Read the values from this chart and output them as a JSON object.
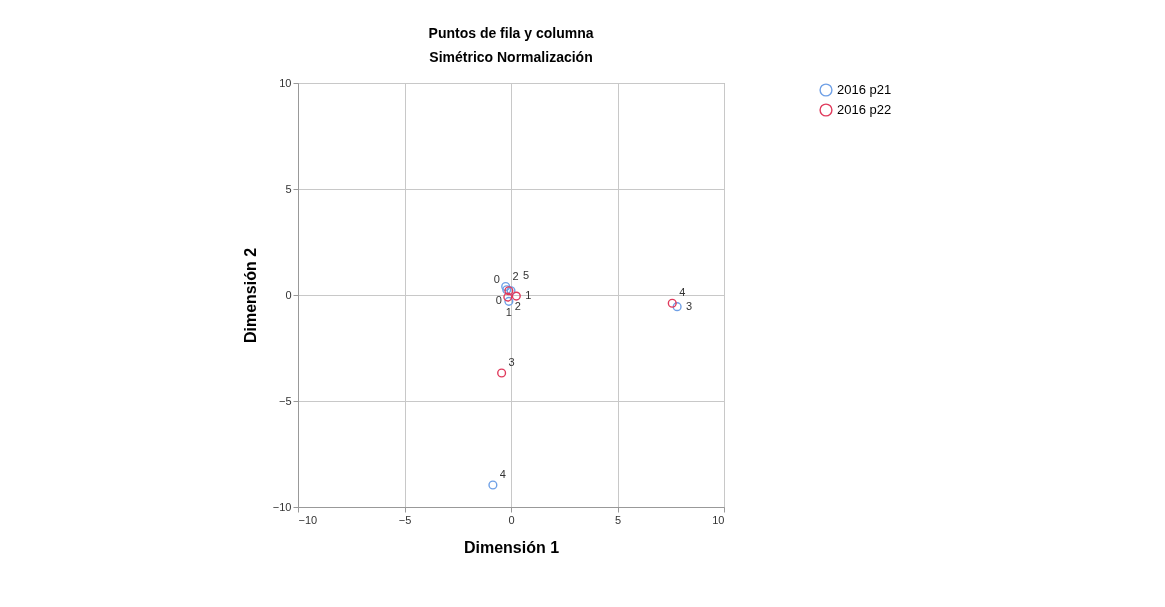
{
  "chart_data": {
    "type": "scatter",
    "title": "Puntos de fila y columna",
    "subtitle": "Simétrico Normalización",
    "xlabel": "Dimensión 1",
    "ylabel": "Dimensión 2",
    "xlim": [
      -10,
      10
    ],
    "ylim": [
      -10,
      10
    ],
    "xticks": [
      -10,
      -5,
      0,
      5,
      10
    ],
    "yticks": [
      -10,
      -5,
      0,
      5,
      10
    ],
    "grid": true,
    "legend": "top right",
    "marker": "circle",
    "series": [
      {
        "name": "2016 p21",
        "color": "#6fa0e6",
        "x": [
          -0.2,
          -0.1,
          -0.25,
          7.8,
          -0.85,
          0.0
        ],
        "values": [
          0.25,
          -0.3,
          0.4,
          -0.55,
          -8.96,
          0.2
        ]
      },
      {
        "name": "2016 p22",
        "color": "#e03a5c",
        "x": [
          -0.1,
          0.25,
          -0.15,
          -0.44,
          7.57
        ],
        "values": [
          0.2,
          -0.05,
          -0.1,
          -3.68,
          -0.39
        ]
      }
    ],
    "annotations": [
      {
        "text": "2",
        "x": -0.25,
        "y": 0.4
      },
      {
        "text": "0",
        "x": -0.2,
        "y": 0.25
      },
      {
        "text": "5",
        "x": 0.0,
        "y": 0.2
      },
      {
        "text": "1",
        "x": 0.25,
        "y": -0.05
      },
      {
        "text": "0",
        "x": -0.1,
        "y": 0.2
      },
      {
        "text": "2",
        "x": -0.15,
        "y": -0.1
      },
      {
        "text": "1",
        "x": -0.1,
        "y": -0.3
      },
      {
        "text": "4",
        "x": 7.57,
        "y": -0.39
      },
      {
        "text": "3",
        "x": 7.8,
        "y": -0.55
      },
      {
        "text": "3",
        "x": -0.44,
        "y": -3.68
      },
      {
        "text": "4",
        "x": -0.85,
        "y": -8.96
      }
    ]
  }
}
